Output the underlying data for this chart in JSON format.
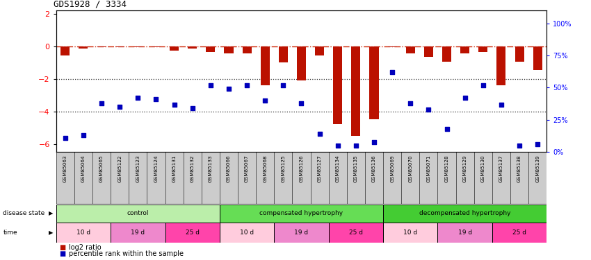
{
  "title": "GDS1928 / 3334",
  "samples": [
    "GSM85063",
    "GSM85064",
    "GSM85065",
    "GSM85122",
    "GSM85123",
    "GSM85124",
    "GSM85131",
    "GSM85132",
    "GSM85133",
    "GSM85066",
    "GSM85067",
    "GSM85068",
    "GSM85125",
    "GSM85126",
    "GSM85127",
    "GSM85134",
    "GSM85135",
    "GSM85136",
    "GSM85069",
    "GSM85070",
    "GSM85071",
    "GSM85128",
    "GSM85129",
    "GSM85130",
    "GSM85137",
    "GSM85138",
    "GSM85139"
  ],
  "log2_ratio": [
    -0.55,
    -0.15,
    -0.05,
    -0.05,
    -0.05,
    -0.05,
    -0.25,
    -0.15,
    -0.35,
    -0.45,
    -0.45,
    -2.4,
    -1.0,
    -2.1,
    -0.55,
    -4.8,
    -5.5,
    -4.5,
    -0.05,
    -0.45,
    -0.65,
    -0.95,
    -0.45,
    -0.35,
    -2.4,
    -0.95,
    -1.45
  ],
  "percentile": [
    11,
    13,
    38,
    35,
    42,
    41,
    37,
    34,
    52,
    49,
    52,
    40,
    52,
    38,
    14,
    5,
    5,
    8,
    62,
    38,
    33,
    18,
    42,
    52,
    37,
    5,
    6
  ],
  "disease_state_groups": [
    {
      "label": "control",
      "start": 0,
      "end": 9,
      "color": "#BBEEAA"
    },
    {
      "label": "compensated hypertrophy",
      "start": 9,
      "end": 18,
      "color": "#66DD55"
    },
    {
      "label": "decompensated hypertrophy",
      "start": 18,
      "end": 27,
      "color": "#44CC33"
    }
  ],
  "time_color_map": [
    "#FFCCDD",
    "#EE88CC",
    "#FF44AA",
    "#FFCCDD",
    "#EE88CC",
    "#FF44AA",
    "#FFCCDD",
    "#EE88CC",
    "#FF44AA"
  ],
  "time_groups": [
    {
      "label": "10 d",
      "start": 0,
      "end": 3
    },
    {
      "label": "19 d",
      "start": 3,
      "end": 6
    },
    {
      "label": "25 d",
      "start": 6,
      "end": 9
    },
    {
      "label": "10 d",
      "start": 9,
      "end": 12
    },
    {
      "label": "19 d",
      "start": 12,
      "end": 15
    },
    {
      "label": "25 d",
      "start": 15,
      "end": 18
    },
    {
      "label": "10 d",
      "start": 18,
      "end": 21
    },
    {
      "label": "19 d",
      "start": 21,
      "end": 24
    },
    {
      "label": "25 d",
      "start": 24,
      "end": 27
    }
  ],
  "ylim_left": [
    -6.5,
    2.2
  ],
  "ylim_right": [
    0,
    110
  ],
  "yticks_left": [
    2,
    0,
    -2,
    -4,
    -6
  ],
  "yticks_right": [
    0,
    25,
    50,
    75,
    100
  ],
  "bar_color": "#BB1100",
  "dot_color": "#0000BB",
  "hline_color": "#CC2200",
  "dotted_line_color": "#333333",
  "label_bg_color": "#CCCCCC",
  "background_color": "#FFFFFF"
}
